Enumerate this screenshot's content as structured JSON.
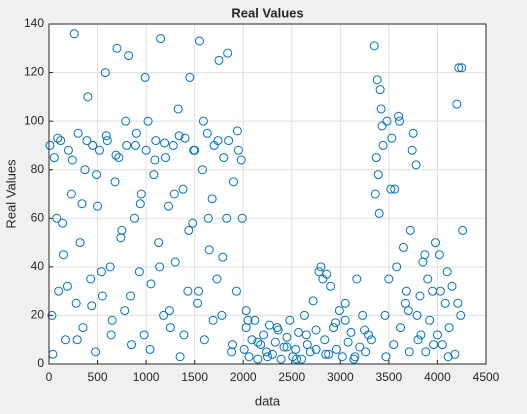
{
  "chart_data": {
    "type": "scatter",
    "title": "Real Values",
    "x_label": "data",
    "y_label": "Real Values",
    "color": "#0072bd",
    "grid": true,
    "xlim": [
      0,
      4500
    ],
    "xticks": [
      0,
      500,
      1000,
      1500,
      2000,
      2500,
      3000,
      3500,
      4000,
      4500
    ],
    "ylim": [
      0,
      140
    ],
    "yticks": [
      0,
      20,
      40,
      60,
      80,
      100,
      120,
      140
    ],
    "x": [
      10,
      30,
      55,
      80,
      100,
      120,
      150,
      170,
      200,
      230,
      260,
      280,
      300,
      320,
      350,
      370,
      400,
      430,
      450,
      480,
      500,
      520,
      550,
      580,
      600,
      630,
      650,
      680,
      700,
      720,
      750,
      780,
      800,
      820,
      850,
      880,
      900,
      930,
      950,
      980,
      1000,
      1020,
      1050,
      1080,
      1100,
      1130,
      1150,
      1180,
      1200,
      1230,
      1250,
      1280,
      1300,
      1330,
      1350,
      1380,
      1400,
      1430,
      1450,
      1480,
      1500,
      1530,
      1550,
      1580,
      1600,
      1630,
      1650,
      1680,
      1700,
      1730,
      1750,
      1780,
      1800,
      1830,
      1850,
      1880,
      1900,
      1930,
      1950,
      1980,
      40,
      90,
      140,
      190,
      240,
      290,
      340,
      390,
      440,
      490,
      540,
      590,
      640,
      690,
      740,
      790,
      840,
      890,
      940,
      990,
      1040,
      1090,
      1140,
      1190,
      1240,
      1290,
      1340,
      1390,
      1440,
      1490,
      1540,
      1590,
      1640,
      1690,
      1740,
      1790,
      1840,
      1890,
      1940,
      1990,
      2010,
      2030,
      2060,
      2090,
      2120,
      2150,
      2180,
      2210,
      2240,
      2270,
      2300,
      2330,
      2360,
      2390,
      2420,
      2450,
      2480,
      2510,
      2540,
      2570,
      2600,
      2630,
      2660,
      2690,
      2720,
      2750,
      2780,
      2800,
      2820,
      2840,
      2860,
      2880,
      2900,
      2930,
      2960,
      2990,
      3020,
      3050,
      3080,
      3110,
      3140,
      3170,
      3200,
      3230,
      3260,
      3290,
      2050,
      2150,
      2250,
      2350,
      2450,
      2550,
      2650,
      2750,
      2850,
      2950,
      3050,
      3150,
      3250,
      2030,
      3320,
      3350,
      3370,
      3380,
      3400,
      3420,
      3440,
      3460,
      3480,
      3500,
      3520,
      3550,
      3580,
      3600,
      3620,
      3650,
      3680,
      3700,
      3720,
      3750,
      3780,
      3800,
      3820,
      3850,
      3880,
      3900,
      3920,
      3950,
      3980,
      4000,
      4020,
      4050,
      4080,
      4100,
      4120,
      4150,
      4180,
      4200,
      4220,
      4240,
      4260,
      3360,
      3390,
      3410,
      3430,
      3470,
      3530,
      3560,
      3610,
      3670,
      3710,
      3740,
      3790,
      3830,
      3870,
      3960,
      4030,
      4110,
      4210,
      4250
    ],
    "values": [
      90,
      20,
      85,
      60,
      30,
      92,
      45,
      10,
      88,
      70,
      136,
      25,
      95,
      50,
      15,
      80,
      110,
      35,
      90,
      5,
      65,
      88,
      28,
      120,
      92,
      40,
      18,
      75,
      130,
      85,
      55,
      22,
      90,
      127,
      8,
      60,
      95,
      38,
      70,
      12,
      88,
      100,
      33,
      78,
      92,
      50,
      134,
      20,
      85,
      65,
      15,
      90,
      42,
      105,
      3,
      72,
      93,
      30,
      118,
      58,
      88,
      25,
      133,
      80,
      10,
      95,
      47,
      68,
      90,
      35,
      125,
      20,
      85,
      60,
      92,
      5,
      75,
      30,
      88,
      84,
      4,
      93,
      58,
      32,
      84,
      10,
      66,
      92,
      24,
      78,
      38,
      94,
      12,
      86,
      52,
      100,
      28,
      90,
      66,
      118,
      6,
      84,
      40,
      91,
      22,
      70,
      94,
      12,
      55,
      88,
      30,
      100,
      60,
      18,
      92,
      44,
      128,
      8,
      96,
      60,
      6,
      15,
      3,
      10,
      18,
      2,
      8,
      12,
      5,
      16,
      4,
      9,
      14,
      2,
      7,
      11,
      18,
      3,
      6,
      13,
      2,
      20,
      8,
      5,
      26,
      14,
      38,
      40,
      35,
      10,
      37,
      4,
      32,
      15,
      6,
      22,
      3,
      18,
      9,
      13,
      2,
      35,
      7,
      20,
      5,
      12,
      18,
      9,
      3,
      15,
      7,
      2,
      12,
      6,
      4,
      17,
      25,
      3,
      14,
      22,
      10,
      131,
      85,
      117,
      62,
      105,
      90,
      20,
      100,
      35,
      72,
      8,
      40,
      102,
      15,
      48,
      30,
      22,
      55,
      95,
      82,
      10,
      28,
      42,
      5,
      35,
      18,
      30,
      50,
      12,
      45,
      8,
      25,
      38,
      15,
      32,
      4,
      107,
      122,
      20,
      55,
      70,
      78,
      113,
      98,
      3,
      93,
      72,
      100,
      25,
      5,
      88,
      20,
      12,
      45,
      8,
      30,
      3,
      25,
      122
    ]
  }
}
